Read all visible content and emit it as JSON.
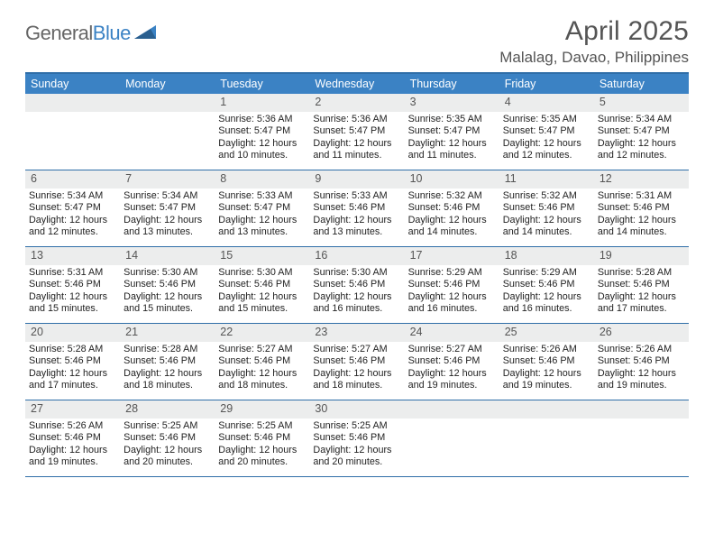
{
  "brand": {
    "part1": "General",
    "part2": "Blue"
  },
  "title": "April 2025",
  "location": "Malalag, Davao, Philippines",
  "colors": {
    "header_bg": "#3b82c4",
    "header_border": "#2f6ea8",
    "daynum_bg": "#eceded",
    "text": "#333333",
    "muted": "#555555"
  },
  "daysOfWeek": [
    "Sunday",
    "Monday",
    "Tuesday",
    "Wednesday",
    "Thursday",
    "Friday",
    "Saturday"
  ],
  "weeks": [
    [
      {
        "n": "",
        "lines": []
      },
      {
        "n": "",
        "lines": []
      },
      {
        "n": "1",
        "lines": [
          "Sunrise: 5:36 AM",
          "Sunset: 5:47 PM",
          "Daylight: 12 hours and 10 minutes."
        ]
      },
      {
        "n": "2",
        "lines": [
          "Sunrise: 5:36 AM",
          "Sunset: 5:47 PM",
          "Daylight: 12 hours and 11 minutes."
        ]
      },
      {
        "n": "3",
        "lines": [
          "Sunrise: 5:35 AM",
          "Sunset: 5:47 PM",
          "Daylight: 12 hours and 11 minutes."
        ]
      },
      {
        "n": "4",
        "lines": [
          "Sunrise: 5:35 AM",
          "Sunset: 5:47 PM",
          "Daylight: 12 hours and 12 minutes."
        ]
      },
      {
        "n": "5",
        "lines": [
          "Sunrise: 5:34 AM",
          "Sunset: 5:47 PM",
          "Daylight: 12 hours and 12 minutes."
        ]
      }
    ],
    [
      {
        "n": "6",
        "lines": [
          "Sunrise: 5:34 AM",
          "Sunset: 5:47 PM",
          "Daylight: 12 hours and 12 minutes."
        ]
      },
      {
        "n": "7",
        "lines": [
          "Sunrise: 5:34 AM",
          "Sunset: 5:47 PM",
          "Daylight: 12 hours and 13 minutes."
        ]
      },
      {
        "n": "8",
        "lines": [
          "Sunrise: 5:33 AM",
          "Sunset: 5:47 PM",
          "Daylight: 12 hours and 13 minutes."
        ]
      },
      {
        "n": "9",
        "lines": [
          "Sunrise: 5:33 AM",
          "Sunset: 5:46 PM",
          "Daylight: 12 hours and 13 minutes."
        ]
      },
      {
        "n": "10",
        "lines": [
          "Sunrise: 5:32 AM",
          "Sunset: 5:46 PM",
          "Daylight: 12 hours and 14 minutes."
        ]
      },
      {
        "n": "11",
        "lines": [
          "Sunrise: 5:32 AM",
          "Sunset: 5:46 PM",
          "Daylight: 12 hours and 14 minutes."
        ]
      },
      {
        "n": "12",
        "lines": [
          "Sunrise: 5:31 AM",
          "Sunset: 5:46 PM",
          "Daylight: 12 hours and 14 minutes."
        ]
      }
    ],
    [
      {
        "n": "13",
        "lines": [
          "Sunrise: 5:31 AM",
          "Sunset: 5:46 PM",
          "Daylight: 12 hours and 15 minutes."
        ]
      },
      {
        "n": "14",
        "lines": [
          "Sunrise: 5:30 AM",
          "Sunset: 5:46 PM",
          "Daylight: 12 hours and 15 minutes."
        ]
      },
      {
        "n": "15",
        "lines": [
          "Sunrise: 5:30 AM",
          "Sunset: 5:46 PM",
          "Daylight: 12 hours and 15 minutes."
        ]
      },
      {
        "n": "16",
        "lines": [
          "Sunrise: 5:30 AM",
          "Sunset: 5:46 PM",
          "Daylight: 12 hours and 16 minutes."
        ]
      },
      {
        "n": "17",
        "lines": [
          "Sunrise: 5:29 AM",
          "Sunset: 5:46 PM",
          "Daylight: 12 hours and 16 minutes."
        ]
      },
      {
        "n": "18",
        "lines": [
          "Sunrise: 5:29 AM",
          "Sunset: 5:46 PM",
          "Daylight: 12 hours and 16 minutes."
        ]
      },
      {
        "n": "19",
        "lines": [
          "Sunrise: 5:28 AM",
          "Sunset: 5:46 PM",
          "Daylight: 12 hours and 17 minutes."
        ]
      }
    ],
    [
      {
        "n": "20",
        "lines": [
          "Sunrise: 5:28 AM",
          "Sunset: 5:46 PM",
          "Daylight: 12 hours and 17 minutes."
        ]
      },
      {
        "n": "21",
        "lines": [
          "Sunrise: 5:28 AM",
          "Sunset: 5:46 PM",
          "Daylight: 12 hours and 18 minutes."
        ]
      },
      {
        "n": "22",
        "lines": [
          "Sunrise: 5:27 AM",
          "Sunset: 5:46 PM",
          "Daylight: 12 hours and 18 minutes."
        ]
      },
      {
        "n": "23",
        "lines": [
          "Sunrise: 5:27 AM",
          "Sunset: 5:46 PM",
          "Daylight: 12 hours and 18 minutes."
        ]
      },
      {
        "n": "24",
        "lines": [
          "Sunrise: 5:27 AM",
          "Sunset: 5:46 PM",
          "Daylight: 12 hours and 19 minutes."
        ]
      },
      {
        "n": "25",
        "lines": [
          "Sunrise: 5:26 AM",
          "Sunset: 5:46 PM",
          "Daylight: 12 hours and 19 minutes."
        ]
      },
      {
        "n": "26",
        "lines": [
          "Sunrise: 5:26 AM",
          "Sunset: 5:46 PM",
          "Daylight: 12 hours and 19 minutes."
        ]
      }
    ],
    [
      {
        "n": "27",
        "lines": [
          "Sunrise: 5:26 AM",
          "Sunset: 5:46 PM",
          "Daylight: 12 hours and 19 minutes."
        ]
      },
      {
        "n": "28",
        "lines": [
          "Sunrise: 5:25 AM",
          "Sunset: 5:46 PM",
          "Daylight: 12 hours and 20 minutes."
        ]
      },
      {
        "n": "29",
        "lines": [
          "Sunrise: 5:25 AM",
          "Sunset: 5:46 PM",
          "Daylight: 12 hours and 20 minutes."
        ]
      },
      {
        "n": "30",
        "lines": [
          "Sunrise: 5:25 AM",
          "Sunset: 5:46 PM",
          "Daylight: 12 hours and 20 minutes."
        ]
      },
      {
        "n": "",
        "lines": []
      },
      {
        "n": "",
        "lines": []
      },
      {
        "n": "",
        "lines": []
      }
    ]
  ]
}
